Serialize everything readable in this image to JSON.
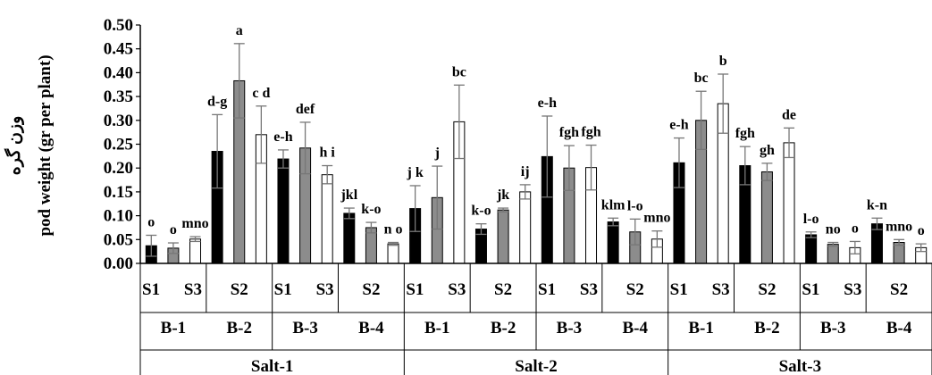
{
  "chart_data": {
    "type": "bar",
    "ylabel": "pod weight (gr per plant)",
    "ylabel_fa": "وزن گره",
    "ylim": [
      0,
      0.5
    ],
    "yticks": [
      "0.00",
      "0.05",
      "0.10",
      "0.15",
      "0.20",
      "0.25",
      "0.30",
      "0.35",
      "0.40",
      "0.45",
      "0.50"
    ],
    "grid": false,
    "series_colors": {
      "S1": "#000000",
      "S2": "#8c8c8c",
      "S3": "#ffffff"
    },
    "x_level1_labels": [
      "S1",
      "S3",
      "S2",
      "S1",
      "S3",
      "S2",
      "S1",
      "S3",
      "S2",
      "S1",
      "S3",
      "S2",
      "S1",
      "S3",
      "S2",
      "S1",
      "S3",
      "S2"
    ],
    "b_groups": [
      "B-1",
      "B-2",
      "B-3",
      "B-4",
      "B-1",
      "B-2",
      "B-3",
      "B-4",
      "B-1",
      "B-2",
      "B-3",
      "B-4"
    ],
    "salt_groups": [
      "Salt-1",
      "Salt-2",
      "Salt-3"
    ],
    "bars": [
      {
        "salt": "Salt-1",
        "b": "B-1",
        "s": "S1",
        "value": 0.037,
        "error": 0.022,
        "label": "o"
      },
      {
        "salt": "Salt-1",
        "b": "B-1",
        "s": "S2",
        "value": 0.032,
        "error": 0.011,
        "label": "o"
      },
      {
        "salt": "Salt-1",
        "b": "B-1",
        "s": "S3",
        "value": 0.051,
        "error": 0.005,
        "label": "mno"
      },
      {
        "salt": "Salt-1",
        "b": "B-2",
        "s": "S1",
        "value": 0.235,
        "error": 0.077,
        "label": "d-g"
      },
      {
        "salt": "Salt-1",
        "b": "B-2",
        "s": "S2",
        "value": 0.383,
        "error": 0.078,
        "label": "a"
      },
      {
        "salt": "Salt-1",
        "b": "B-2",
        "s": "S3",
        "value": 0.27,
        "error": 0.06,
        "label": "c d"
      },
      {
        "salt": "Salt-1",
        "b": "B-3",
        "s": "S1",
        "value": 0.219,
        "error": 0.019,
        "label": "e-h"
      },
      {
        "salt": "Salt-1",
        "b": "B-3",
        "s": "S2",
        "value": 0.242,
        "error": 0.054,
        "label": "def"
      },
      {
        "salt": "Salt-1",
        "b": "B-3",
        "s": "S3",
        "value": 0.186,
        "error": 0.019,
        "label": "h i"
      },
      {
        "salt": "Salt-1",
        "b": "B-4",
        "s": "S1",
        "value": 0.105,
        "error": 0.011,
        "label": "jkl"
      },
      {
        "salt": "Salt-1",
        "b": "B-4",
        "s": "S2",
        "value": 0.075,
        "error": 0.011,
        "label": "k-o"
      },
      {
        "salt": "Salt-1",
        "b": "B-4",
        "s": "S3",
        "value": 0.041,
        "error": 0.003,
        "label": "n o"
      },
      {
        "salt": "Salt-2",
        "b": "B-1",
        "s": "S1",
        "value": 0.115,
        "error": 0.048,
        "label": "j k"
      },
      {
        "salt": "Salt-2",
        "b": "B-1",
        "s": "S2",
        "value": 0.138,
        "error": 0.066,
        "label": "j"
      },
      {
        "salt": "Salt-2",
        "b": "B-1",
        "s": "S3",
        "value": 0.297,
        "error": 0.077,
        "label": "bc"
      },
      {
        "salt": "Salt-2",
        "b": "B-2",
        "s": "S1",
        "value": 0.072,
        "error": 0.011,
        "label": "k-o"
      },
      {
        "salt": "Salt-2",
        "b": "B-2",
        "s": "S2",
        "value": 0.112,
        "error": 0.004,
        "label": "jk"
      },
      {
        "salt": "Salt-2",
        "b": "B-2",
        "s": "S3",
        "value": 0.15,
        "error": 0.015,
        "label": "ij"
      },
      {
        "salt": "Salt-2",
        "b": "B-3",
        "s": "S1",
        "value": 0.224,
        "error": 0.085,
        "label": "e-h"
      },
      {
        "salt": "Salt-2",
        "b": "B-3",
        "s": "S2",
        "value": 0.2,
        "error": 0.047,
        "label": "fgh"
      },
      {
        "salt": "Salt-2",
        "b": "B-3",
        "s": "S3",
        "value": 0.201,
        "error": 0.047,
        "label": "fgh"
      },
      {
        "salt": "Salt-2",
        "b": "B-4",
        "s": "S1",
        "value": 0.087,
        "error": 0.008,
        "label": "klm"
      },
      {
        "salt": "Salt-2",
        "b": "B-4",
        "s": "S2",
        "value": 0.066,
        "error": 0.027,
        "label": "l-o"
      },
      {
        "salt": "Salt-2",
        "b": "B-4",
        "s": "S3",
        "value": 0.051,
        "error": 0.017,
        "label": "mno"
      },
      {
        "salt": "Salt-3",
        "b": "B-1",
        "s": "S1",
        "value": 0.211,
        "error": 0.052,
        "label": "e-h"
      },
      {
        "salt": "Salt-3",
        "b": "B-1",
        "s": "S2",
        "value": 0.3,
        "error": 0.061,
        "label": "bc"
      },
      {
        "salt": "Salt-3",
        "b": "B-1",
        "s": "S3",
        "value": 0.335,
        "error": 0.062,
        "label": "b"
      },
      {
        "salt": "Salt-3",
        "b": "B-2",
        "s": "S1",
        "value": 0.205,
        "error": 0.04,
        "label": "fgh"
      },
      {
        "salt": "Salt-3",
        "b": "B-2",
        "s": "S2",
        "value": 0.192,
        "error": 0.018,
        "label": "gh"
      },
      {
        "salt": "Salt-3",
        "b": "B-2",
        "s": "S3",
        "value": 0.253,
        "error": 0.031,
        "label": "de"
      },
      {
        "salt": "Salt-3",
        "b": "B-3",
        "s": "S1",
        "value": 0.06,
        "error": 0.006,
        "label": "l-o"
      },
      {
        "salt": "Salt-3",
        "b": "B-3",
        "s": "S2",
        "value": 0.04,
        "error": 0.004,
        "label": "no"
      },
      {
        "salt": "Salt-3",
        "b": "B-3",
        "s": "S3",
        "value": 0.033,
        "error": 0.013,
        "label": "o"
      },
      {
        "salt": "Salt-3",
        "b": "B-4",
        "s": "S1",
        "value": 0.083,
        "error": 0.012,
        "label": "k-n"
      },
      {
        "salt": "Salt-3",
        "b": "B-4",
        "s": "S2",
        "value": 0.044,
        "error": 0.006,
        "label": "mno"
      },
      {
        "salt": "Salt-3",
        "b": "B-4",
        "s": "S3",
        "value": 0.033,
        "error": 0.008,
        "label": "o"
      }
    ]
  }
}
